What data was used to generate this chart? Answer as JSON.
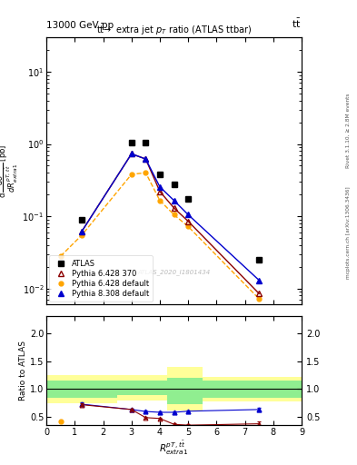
{
  "title_left": "13000 GeV pp",
  "title_right": "tt",
  "title_main": "tt→ extra jet p$_T$ ratio (ATLAS ttbar)",
  "watermark": "ATLAS_2020_I1801434",
  "right_label_top": "Rivet 3.1.10, ≥ 2.8M events",
  "right_label_bottom": "mcplots.cern.ch [arXiv:1306.3436]",
  "xlim": [
    0,
    9
  ],
  "ylim_main": [
    0.006,
    30
  ],
  "ylim_ratio": [
    0.35,
    2.3
  ],
  "yticks_ratio": [
    0.5,
    1.0,
    1.5,
    2.0
  ],
  "data_atlas_x": [
    1.25,
    3.0,
    3.5,
    4.0,
    4.5,
    5.0,
    7.5
  ],
  "data_atlas_y": [
    0.09,
    1.05,
    1.05,
    0.38,
    0.28,
    0.175,
    0.025
  ],
  "pythia6_370_x": [
    1.25,
    3.0,
    3.5,
    4.0,
    4.5,
    5.0,
    7.5
  ],
  "pythia6_370_y": [
    0.062,
    0.73,
    0.62,
    0.22,
    0.13,
    0.085,
    0.0085
  ],
  "pythia6_def_x": [
    0.5,
    1.25,
    3.0,
    3.5,
    4.0,
    4.5,
    5.0,
    7.5
  ],
  "pythia6_def_y": [
    0.028,
    0.055,
    0.38,
    0.4,
    0.165,
    0.105,
    0.072,
    0.0072
  ],
  "pythia8_def_x": [
    1.25,
    3.0,
    3.5,
    4.0,
    4.5,
    5.0,
    7.5
  ],
  "pythia8_def_y": [
    0.062,
    0.73,
    0.62,
    0.255,
    0.165,
    0.105,
    0.013
  ],
  "ratio_p6_370_x": [
    1.25,
    3.0,
    3.5,
    4.0,
    4.5,
    5.0,
    7.5
  ],
  "ratio_p6_370_y": [
    0.72,
    0.635,
    0.49,
    0.475,
    0.37,
    0.355,
    0.38
  ],
  "ratio_p6_370_yerr": [
    0.025,
    0.015,
    0.015,
    0.015,
    0.015,
    0.015,
    0.035
  ],
  "ratio_p6_def_x": [
    0.5
  ],
  "ratio_p6_def_y": [
    0.42
  ],
  "ratio_p8_def_x": [
    1.25,
    3.0,
    3.5,
    4.0,
    4.5,
    5.0,
    7.5
  ],
  "ratio_p8_def_y": [
    0.73,
    0.635,
    0.6,
    0.585,
    0.585,
    0.605,
    0.635
  ],
  "ratio_p8_def_yerr": [
    0.025,
    0.015,
    0.015,
    0.015,
    0.015,
    0.015,
    0.035
  ],
  "band_yellow_edges": [
    [
      0.0,
      2.5
    ],
    [
      2.5,
      4.25
    ],
    [
      4.25,
      5.5
    ],
    [
      5.5,
      9.0
    ]
  ],
  "band_yellow_lows": [
    0.75,
    0.8,
    0.62,
    0.78
  ],
  "band_yellow_highs": [
    1.25,
    1.25,
    1.4,
    1.22
  ],
  "band_green_edges": [
    [
      0.0,
      2.5
    ],
    [
      2.5,
      4.25
    ],
    [
      4.25,
      5.5
    ],
    [
      5.5,
      9.0
    ]
  ],
  "band_green_lows": [
    0.85,
    0.9,
    0.73,
    0.85
  ],
  "band_green_highs": [
    1.15,
    1.15,
    1.2,
    1.15
  ],
  "color_atlas": "black",
  "color_p6_370": "#8B0000",
  "color_p6_def": "#FFA500",
  "color_p8_def": "#0000CD",
  "color_green": "#90EE90",
  "color_yellow": "#FFFF99"
}
